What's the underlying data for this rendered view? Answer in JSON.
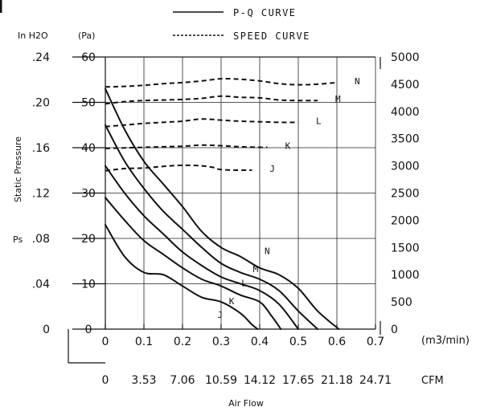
{
  "chart_data": {
    "type": "line",
    "legend": {
      "position": "top-center",
      "entries": [
        {
          "style": "solid",
          "label": "P-Q CURVE"
        },
        {
          "style": "dashed",
          "label": "SPEED CURVE"
        }
      ]
    },
    "xlabel": "Air Flow",
    "x_unit_top": "(m3/min)",
    "x_unit_bottom": "CFM",
    "x_ticks_m3": [
      "0",
      "0.1",
      "0.2",
      "0.3",
      "0.4",
      "0.5",
      "0.6",
      "0.7"
    ],
    "x_ticks_cfm": [
      "0",
      "3.53",
      "7.06",
      "10.59",
      "14.12",
      "17.65",
      "21.18",
      "24.71"
    ],
    "xlim": [
      0,
      0.7
    ],
    "y_label": "Static Pressure",
    "y_sub_label": "Ps",
    "y_inh2o_unit": "In H2O",
    "y_pa_unit": "(Pa)",
    "y_ticks_inh2o": [
      "0",
      ".04",
      ".08",
      ".12",
      ".16",
      ".20",
      ".24"
    ],
    "y_ticks_pa": [
      "0",
      "10",
      "20",
      "30",
      "40",
      "50",
      "60"
    ],
    "ylim": [
      0,
      60
    ],
    "y2_ticks": [
      "0",
      "500",
      "1000",
      "1500",
      "2000",
      "2500",
      "3000",
      "3500",
      "4000",
      "4500",
      "5000"
    ],
    "y2lim": [
      0,
      5000
    ],
    "grid": true,
    "pq_series": [
      {
        "name": "N",
        "points": [
          [
            0,
            53
          ],
          [
            0.05,
            44
          ],
          [
            0.1,
            37
          ],
          [
            0.15,
            32
          ],
          [
            0.2,
            27
          ],
          [
            0.25,
            21.5
          ],
          [
            0.3,
            18
          ],
          [
            0.35,
            16
          ],
          [
            0.4,
            13.5
          ],
          [
            0.45,
            12
          ],
          [
            0.5,
            9
          ],
          [
            0.55,
            4
          ],
          [
            0.605,
            0
          ]
        ]
      },
      {
        "name": "M",
        "points": [
          [
            0,
            45
          ],
          [
            0.05,
            37
          ],
          [
            0.1,
            31
          ],
          [
            0.15,
            26
          ],
          [
            0.2,
            22
          ],
          [
            0.25,
            18
          ],
          [
            0.3,
            14.5
          ],
          [
            0.35,
            12.5
          ],
          [
            0.4,
            11
          ],
          [
            0.45,
            8.5
          ],
          [
            0.5,
            4
          ],
          [
            0.55,
            0
          ]
        ]
      },
      {
        "name": "L",
        "points": [
          [
            0,
            36
          ],
          [
            0.05,
            30
          ],
          [
            0.1,
            25
          ],
          [
            0.15,
            21
          ],
          [
            0.2,
            17
          ],
          [
            0.25,
            14
          ],
          [
            0.3,
            11.5
          ],
          [
            0.35,
            10
          ],
          [
            0.4,
            8.5
          ],
          [
            0.45,
            5.5
          ],
          [
            0.5,
            0
          ]
        ]
      },
      {
        "name": "K",
        "points": [
          [
            0,
            29
          ],
          [
            0.05,
            24
          ],
          [
            0.1,
            19.5
          ],
          [
            0.15,
            16.5
          ],
          [
            0.2,
            13.5
          ],
          [
            0.25,
            11
          ],
          [
            0.3,
            9.5
          ],
          [
            0.35,
            7.5
          ],
          [
            0.4,
            6
          ],
          [
            0.43,
            3
          ],
          [
            0.455,
            0
          ]
        ]
      },
      {
        "name": "J",
        "points": [
          [
            0,
            23
          ],
          [
            0.05,
            16
          ],
          [
            0.1,
            12.5
          ],
          [
            0.15,
            12
          ],
          [
            0.2,
            9.5
          ],
          [
            0.25,
            7
          ],
          [
            0.3,
            6
          ],
          [
            0.35,
            3.5
          ],
          [
            0.38,
            1
          ],
          [
            0.395,
            0
          ]
        ]
      }
    ],
    "speed_series": [
      {
        "name": "N",
        "points": [
          [
            0,
            4450
          ],
          [
            0.05,
            4460
          ],
          [
            0.1,
            4480
          ],
          [
            0.15,
            4510
          ],
          [
            0.2,
            4530
          ],
          [
            0.25,
            4560
          ],
          [
            0.3,
            4600
          ],
          [
            0.35,
            4590
          ],
          [
            0.4,
            4560
          ],
          [
            0.45,
            4510
          ],
          [
            0.5,
            4490
          ],
          [
            0.55,
            4500
          ],
          [
            0.6,
            4530
          ]
        ]
      },
      {
        "name": "M",
        "points": [
          [
            0,
            4140
          ],
          [
            0.05,
            4180
          ],
          [
            0.1,
            4200
          ],
          [
            0.15,
            4210
          ],
          [
            0.2,
            4220
          ],
          [
            0.25,
            4240
          ],
          [
            0.3,
            4280
          ],
          [
            0.35,
            4260
          ],
          [
            0.4,
            4250
          ],
          [
            0.45,
            4210
          ],
          [
            0.5,
            4200
          ],
          [
            0.55,
            4200
          ]
        ]
      },
      {
        "name": "L",
        "points": [
          [
            0,
            3720
          ],
          [
            0.05,
            3750
          ],
          [
            0.1,
            3780
          ],
          [
            0.15,
            3800
          ],
          [
            0.2,
            3820
          ],
          [
            0.25,
            3860
          ],
          [
            0.3,
            3840
          ],
          [
            0.35,
            3820
          ],
          [
            0.4,
            3810
          ],
          [
            0.45,
            3800
          ],
          [
            0.5,
            3800
          ]
        ]
      },
      {
        "name": "K",
        "points": [
          [
            0,
            3320
          ],
          [
            0.05,
            3330
          ],
          [
            0.1,
            3340
          ],
          [
            0.15,
            3350
          ],
          [
            0.2,
            3360
          ],
          [
            0.25,
            3380
          ],
          [
            0.3,
            3370
          ],
          [
            0.35,
            3350
          ],
          [
            0.4,
            3340
          ],
          [
            0.42,
            3340
          ]
        ]
      },
      {
        "name": "J",
        "points": [
          [
            0,
            2910
          ],
          [
            0.05,
            2950
          ],
          [
            0.1,
            2960
          ],
          [
            0.15,
            2990
          ],
          [
            0.2,
            3010
          ],
          [
            0.25,
            3000
          ],
          [
            0.28,
            2970
          ],
          [
            0.3,
            2930
          ],
          [
            0.35,
            2920
          ],
          [
            0.38,
            2920
          ]
        ]
      }
    ]
  }
}
